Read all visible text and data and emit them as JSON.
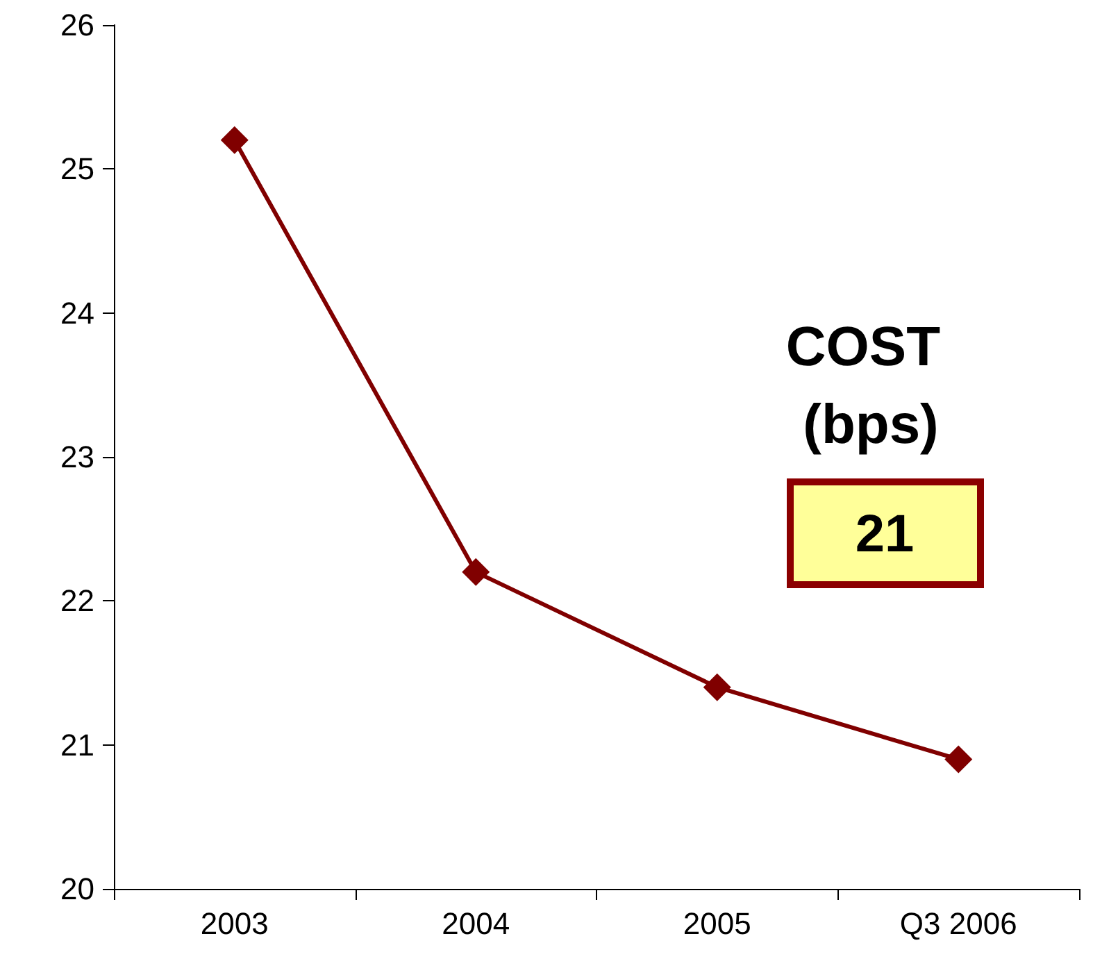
{
  "chart_data": {
    "type": "line",
    "categories": [
      "2003",
      "2004",
      "2005",
      "Q3 2006"
    ],
    "series": [
      {
        "color": "#800000",
        "values": [
          25.2,
          22.2,
          21.4,
          20.9
        ]
      }
    ],
    "ylim": [
      20,
      26
    ],
    "yticks": [
      20,
      21,
      22,
      23,
      24,
      25,
      26
    ],
    "grid": false,
    "marker": "diamond",
    "line_style": "solid",
    "annotations": [
      "COST (bps)",
      "21"
    ]
  }
}
